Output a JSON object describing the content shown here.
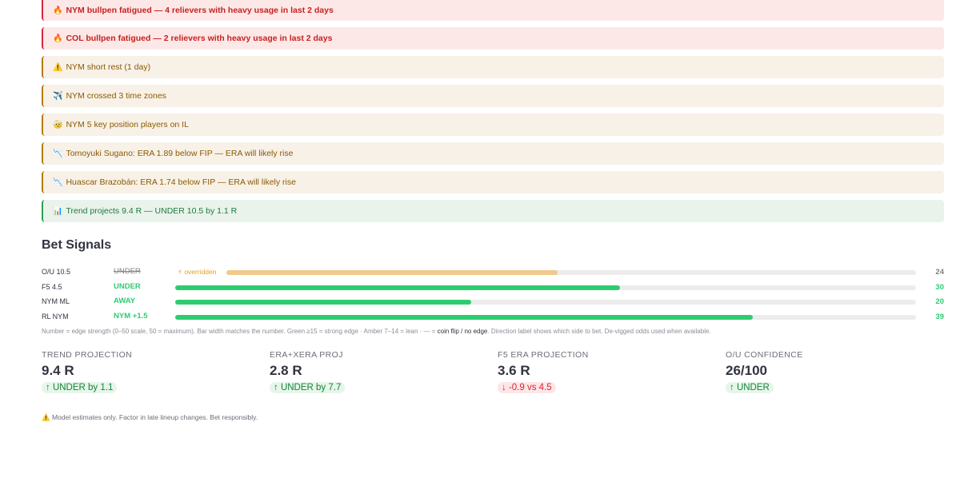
{
  "alerts": [
    {
      "type": "red",
      "icon": "🔥",
      "text": "NYM bullpen fatigued — 4 relievers with heavy usage in last 2 days"
    },
    {
      "type": "red",
      "icon": "🔥",
      "text": "COL bullpen fatigued — 2 relievers with heavy usage in last 2 days"
    },
    {
      "type": "amber",
      "icon": "⚠️",
      "text": "NYM short rest (1 day)"
    },
    {
      "type": "amber",
      "icon": "✈️",
      "text": "NYM crossed 3 time zones"
    },
    {
      "type": "amber",
      "icon": "🤕",
      "text": "NYM 5 key position players on IL"
    },
    {
      "type": "amber",
      "icon": "📉",
      "text": "Tomoyuki Sugano: ERA 1.89 below FIP — ERA will likely rise"
    },
    {
      "type": "amber",
      "icon": "📉",
      "text": "Huascar Brazobán: ERA 1.74 below FIP — ERA will likely rise"
    },
    {
      "type": "green",
      "icon": "📊",
      "text": "Trend projects 9.4 R — UNDER 10.5 by 1.1 R"
    }
  ],
  "bet_signals": {
    "title": "Bet Signals",
    "scale_max": 50,
    "rows": [
      {
        "market": "O/U 10.5",
        "direction": "UNDER",
        "overridden": true,
        "override_label": "⚡ overridden",
        "strength": 24
      },
      {
        "market": "F5 4.5",
        "direction": "UNDER",
        "overridden": false,
        "strength": 30
      },
      {
        "market": "NYM ML",
        "direction": "AWAY",
        "overridden": false,
        "strength": 20
      },
      {
        "market": "RL NYM",
        "direction": "NYM +1.5",
        "overridden": false,
        "strength": 39
      }
    ],
    "note_before": "Number = edge strength (0–50 scale, 50 = maximum). Bar width matches the number. Green ≥15 = strong edge · Amber 7–14 = lean · — = ",
    "note_bold": "coin flip / no edge",
    "note_after": ". Direction label shows which side to bet. De-vigged odds used when available."
  },
  "metrics": [
    {
      "label": "TREND PROJECTION",
      "value": "9.4 R",
      "delta": "↑ UNDER by 1.1",
      "trend": "up"
    },
    {
      "label": "ERA+XERA PROJ",
      "value": "2.8 R",
      "delta": "↑ UNDER by 7.7",
      "trend": "up"
    },
    {
      "label": "F5 ERA PROJECTION",
      "value": "3.6 R",
      "delta": "↓ -0.9 vs 4.5",
      "trend": "down"
    },
    {
      "label": "O/U CONFIDENCE",
      "value": "26/100",
      "delta": "↑ UNDER",
      "trend": "up"
    }
  ],
  "disclaimer": "⚠️ Model estimates only. Factor in late lineup changes. Bet responsibly.",
  "colors": {
    "strong": "#2ecc71",
    "overridden": "#f0c98b",
    "alert_red": "#d7263d",
    "alert_amber": "#b07c10",
    "alert_green": "#2e9e4f"
  }
}
